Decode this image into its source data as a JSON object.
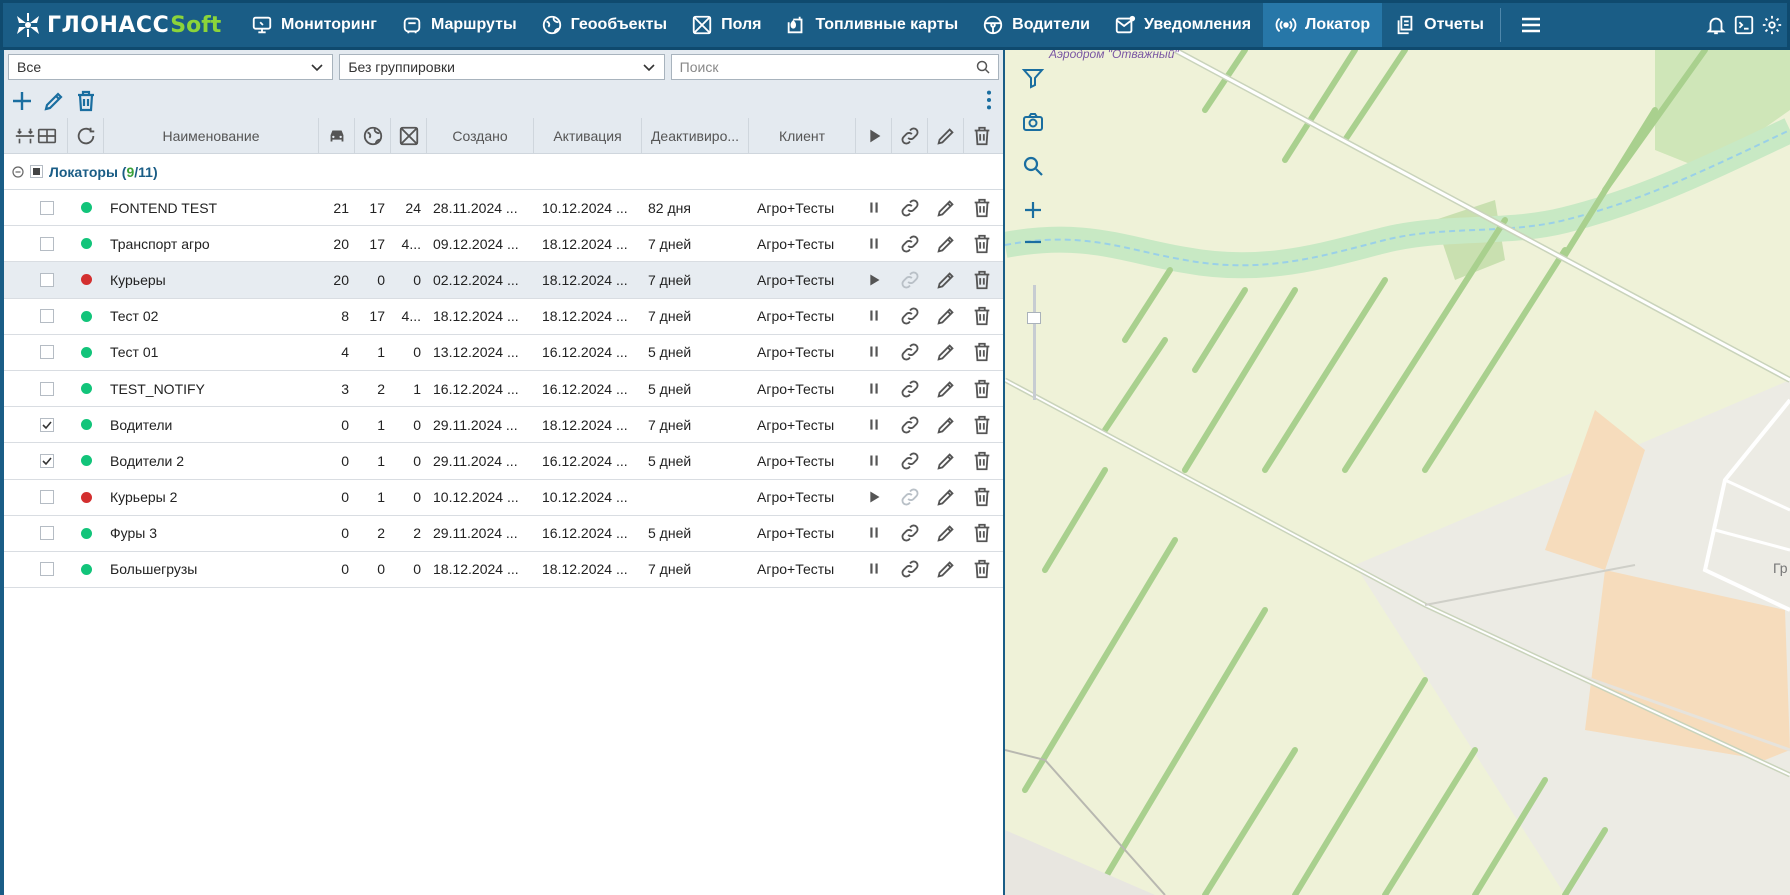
{
  "app": {
    "logo_main": "ГЛОНАСС",
    "logo_soft": "Soft"
  },
  "nav": {
    "items": [
      {
        "label": "Мониторинг",
        "icon": "monitor-icon"
      },
      {
        "label": "Маршруты",
        "icon": "route-icon"
      },
      {
        "label": "Геообъекты",
        "icon": "globe-icon"
      },
      {
        "label": "Поля",
        "icon": "field-icon"
      },
      {
        "label": "Топливные карты",
        "icon": "fuel-card-icon"
      },
      {
        "label": "Водители",
        "icon": "steering-wheel-icon"
      },
      {
        "label": "Уведомления",
        "icon": "notification-icon"
      },
      {
        "label": "Локатор",
        "icon": "locator-icon",
        "active": true
      },
      {
        "label": "Отчеты",
        "icon": "reports-icon"
      }
    ]
  },
  "filters": {
    "scope_value": "Все",
    "grouping_value": "Без группировки",
    "search_placeholder": "Поиск"
  },
  "table": {
    "headers": {
      "name": "Наименование",
      "created": "Создано",
      "activation": "Активация",
      "deactivation": "Деактивиро...",
      "client": "Клиент"
    },
    "group": {
      "label": "Локаторы",
      "active": "9",
      "total": "11"
    },
    "rows": [
      {
        "checked": false,
        "status": "green",
        "name": "FONTEND TEST",
        "cars": "21",
        "geo": "17",
        "fields": "24",
        "created": "28.11.2024 ...",
        "activation": "10.12.2024 ...",
        "deactivation": "82 дня",
        "client": "Агро+Тесты",
        "state": "pause"
      },
      {
        "checked": false,
        "status": "green",
        "name": "Транспорт агро",
        "cars": "20",
        "geo": "17",
        "fields": "4...",
        "created": "09.12.2024 ...",
        "activation": "18.12.2024 ...",
        "deactivation": "7 дней",
        "client": "Агро+Тесты",
        "state": "pause"
      },
      {
        "checked": false,
        "status": "red",
        "name": "Курьеры",
        "cars": "20",
        "geo": "0",
        "fields": "0",
        "created": "02.12.2024 ...",
        "activation": "18.12.2024 ...",
        "deactivation": "7 дней",
        "client": "Агро+Тесты",
        "state": "play",
        "selected": true
      },
      {
        "checked": false,
        "status": "green",
        "name": "Тест 02",
        "cars": "8",
        "geo": "17",
        "fields": "4...",
        "created": "18.12.2024 ...",
        "activation": "18.12.2024 ...",
        "deactivation": "7 дней",
        "client": "Агро+Тесты",
        "state": "pause"
      },
      {
        "checked": false,
        "status": "green",
        "name": "Тест 01",
        "cars": "4",
        "geo": "1",
        "fields": "0",
        "created": "13.12.2024 ...",
        "activation": "16.12.2024 ...",
        "deactivation": "5 дней",
        "client": "Агро+Тесты",
        "state": "pause"
      },
      {
        "checked": false,
        "status": "green",
        "name": "TEST_NOTIFY",
        "cars": "3",
        "geo": "2",
        "fields": "1",
        "created": "16.12.2024 ...",
        "activation": "16.12.2024 ...",
        "deactivation": "5 дней",
        "client": "Агро+Тесты",
        "state": "pause"
      },
      {
        "checked": true,
        "status": "green",
        "name": "Водители",
        "cars": "0",
        "geo": "1",
        "fields": "0",
        "created": "29.11.2024 ...",
        "activation": "18.12.2024 ...",
        "deactivation": "7 дней",
        "client": "Агро+Тесты",
        "state": "pause"
      },
      {
        "checked": true,
        "status": "green",
        "name": "Водители 2",
        "cars": "0",
        "geo": "1",
        "fields": "0",
        "created": "29.11.2024 ...",
        "activation": "16.12.2024 ...",
        "deactivation": "5 дней",
        "client": "Агро+Тесты",
        "state": "pause"
      },
      {
        "checked": false,
        "status": "red",
        "name": "Курьеры 2",
        "cars": "0",
        "geo": "1",
        "fields": "0",
        "created": "10.12.2024 ...",
        "activation": "10.12.2024 ...",
        "deactivation": "",
        "client": "Агро+Тесты",
        "state": "play"
      },
      {
        "checked": false,
        "status": "green",
        "name": "Фуры 3",
        "cars": "0",
        "geo": "2",
        "fields": "2",
        "created": "29.11.2024 ...",
        "activation": "16.12.2024 ...",
        "deactivation": "5 дней",
        "client": "Агро+Тесты",
        "state": "pause"
      },
      {
        "checked": false,
        "status": "green",
        "name": "Большегрузы",
        "cars": "0",
        "geo": "0",
        "fields": "0",
        "created": "18.12.2024 ...",
        "activation": "18.12.2024 ...",
        "deactivation": "7 дней",
        "client": "Агро+Тесты",
        "state": "pause"
      }
    ]
  },
  "map": {
    "label_airfield": "Аэродром \"Отважный\"",
    "label_edge": "Гр"
  },
  "colors": {
    "nav_bg": "#1a5d86",
    "nav_active": "#2777a8",
    "accent": "#1a6ea0",
    "status_green": "#12c47a",
    "status_red": "#d32f2f",
    "logo_soft": "#8bd43a"
  }
}
